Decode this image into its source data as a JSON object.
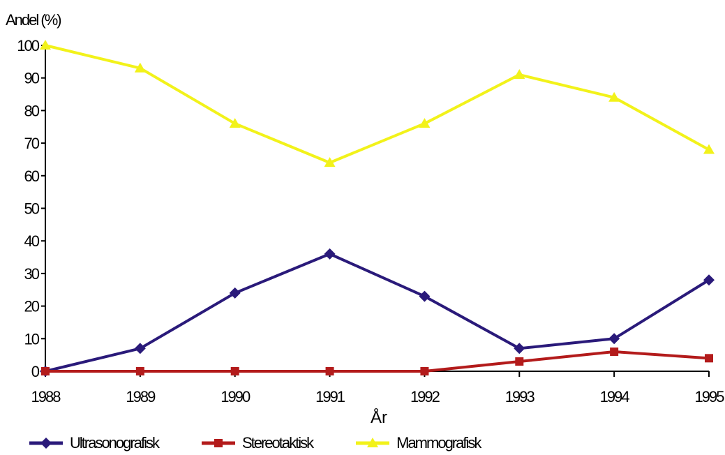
{
  "chart_data": {
    "type": "line",
    "ylabel": "Andel (%)",
    "xlabel": "År",
    "categories": [
      "1988",
      "1989",
      "1990",
      "1991",
      "1992",
      "1993",
      "1994",
      "1995"
    ],
    "ylim": [
      0,
      100
    ],
    "yticks": [
      "0",
      "10",
      "20",
      "30",
      "40",
      "50",
      "60",
      "70",
      "80",
      "90",
      "100"
    ],
    "grid": false,
    "legend_position": "bottom",
    "series": [
      {
        "name": "Ultrasonografisk",
        "color": "#2a1a7a",
        "marker": "diamond",
        "values": [
          0,
          7,
          24,
          36,
          23,
          7,
          10,
          28
        ]
      },
      {
        "name": "Stereotaktisk",
        "color": "#b31b1b",
        "marker": "square",
        "values": [
          0,
          0,
          0,
          0,
          0,
          3,
          6,
          4
        ]
      },
      {
        "name": "Mammografisk",
        "color": "#f2f21a",
        "marker": "triangle",
        "values": [
          100,
          93,
          76,
          64,
          76,
          91,
          84,
          68
        ]
      }
    ]
  }
}
